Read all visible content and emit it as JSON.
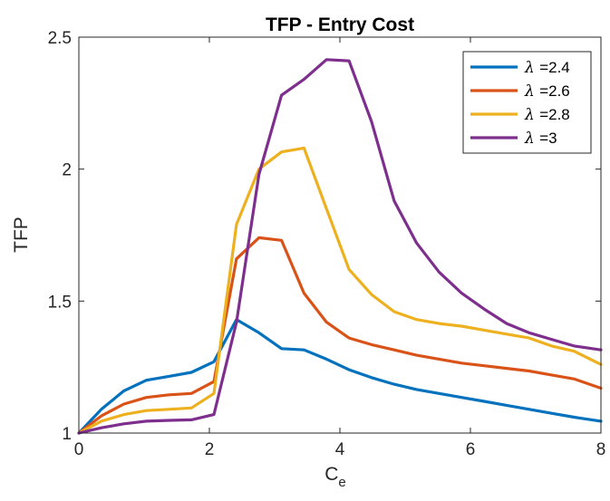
{
  "chart_data": {
    "type": "line",
    "title": "TFP - Entry Cost",
    "xlabel": {
      "main": "C",
      "sub": "e"
    },
    "ylabel": "TFP",
    "xlim": [
      0,
      8
    ],
    "ylim": [
      1,
      2.5
    ],
    "xticks": [
      0,
      2,
      4,
      6,
      8
    ],
    "xtick_labels": [
      "0",
      "2",
      "4",
      "6",
      "8"
    ],
    "yticks": [
      1,
      1.5,
      2,
      2.5
    ],
    "ytick_labels": [
      "1",
      "1.5",
      "2",
      "2.5"
    ],
    "grid": false,
    "legend_position": "top-right",
    "legend_symbol": "λ",
    "x": [
      0,
      0.345,
      0.69,
      1.035,
      1.38,
      1.725,
      2.07,
      2.415,
      2.76,
      3.105,
      3.45,
      3.795,
      4.14,
      4.485,
      4.83,
      5.175,
      5.52,
      5.865,
      6.21,
      6.555,
      6.9,
      7.245,
      7.59,
      8.0
    ],
    "series": [
      {
        "name": "=2.4",
        "color": "#0072BD",
        "values": [
          1.0,
          1.09,
          1.16,
          1.2,
          1.215,
          1.23,
          1.27,
          1.43,
          1.38,
          1.32,
          1.315,
          1.28,
          1.24,
          1.21,
          1.185,
          1.165,
          1.15,
          1.135,
          1.12,
          1.105,
          1.09,
          1.075,
          1.06,
          1.045
        ]
      },
      {
        "name": "=2.6",
        "color": "#D95319",
        "values": [
          1.0,
          1.065,
          1.11,
          1.135,
          1.145,
          1.15,
          1.195,
          1.66,
          1.74,
          1.73,
          1.53,
          1.42,
          1.36,
          1.335,
          1.315,
          1.295,
          1.28,
          1.265,
          1.255,
          1.245,
          1.235,
          1.22,
          1.205,
          1.17
        ]
      },
      {
        "name": "=2.8",
        "color": "#EDB120",
        "values": [
          1.0,
          1.045,
          1.07,
          1.085,
          1.09,
          1.095,
          1.15,
          1.79,
          2.0,
          2.065,
          2.08,
          1.85,
          1.62,
          1.525,
          1.46,
          1.43,
          1.415,
          1.405,
          1.39,
          1.375,
          1.36,
          1.33,
          1.31,
          1.26
        ]
      },
      {
        "name": "=3",
        "color": "#7E2F8E",
        "values": [
          1.0,
          1.02,
          1.035,
          1.045,
          1.048,
          1.05,
          1.07,
          1.42,
          1.98,
          2.28,
          2.34,
          2.415,
          2.41,
          2.18,
          1.88,
          1.72,
          1.61,
          1.53,
          1.47,
          1.415,
          1.38,
          1.355,
          1.33,
          1.315
        ]
      }
    ]
  }
}
